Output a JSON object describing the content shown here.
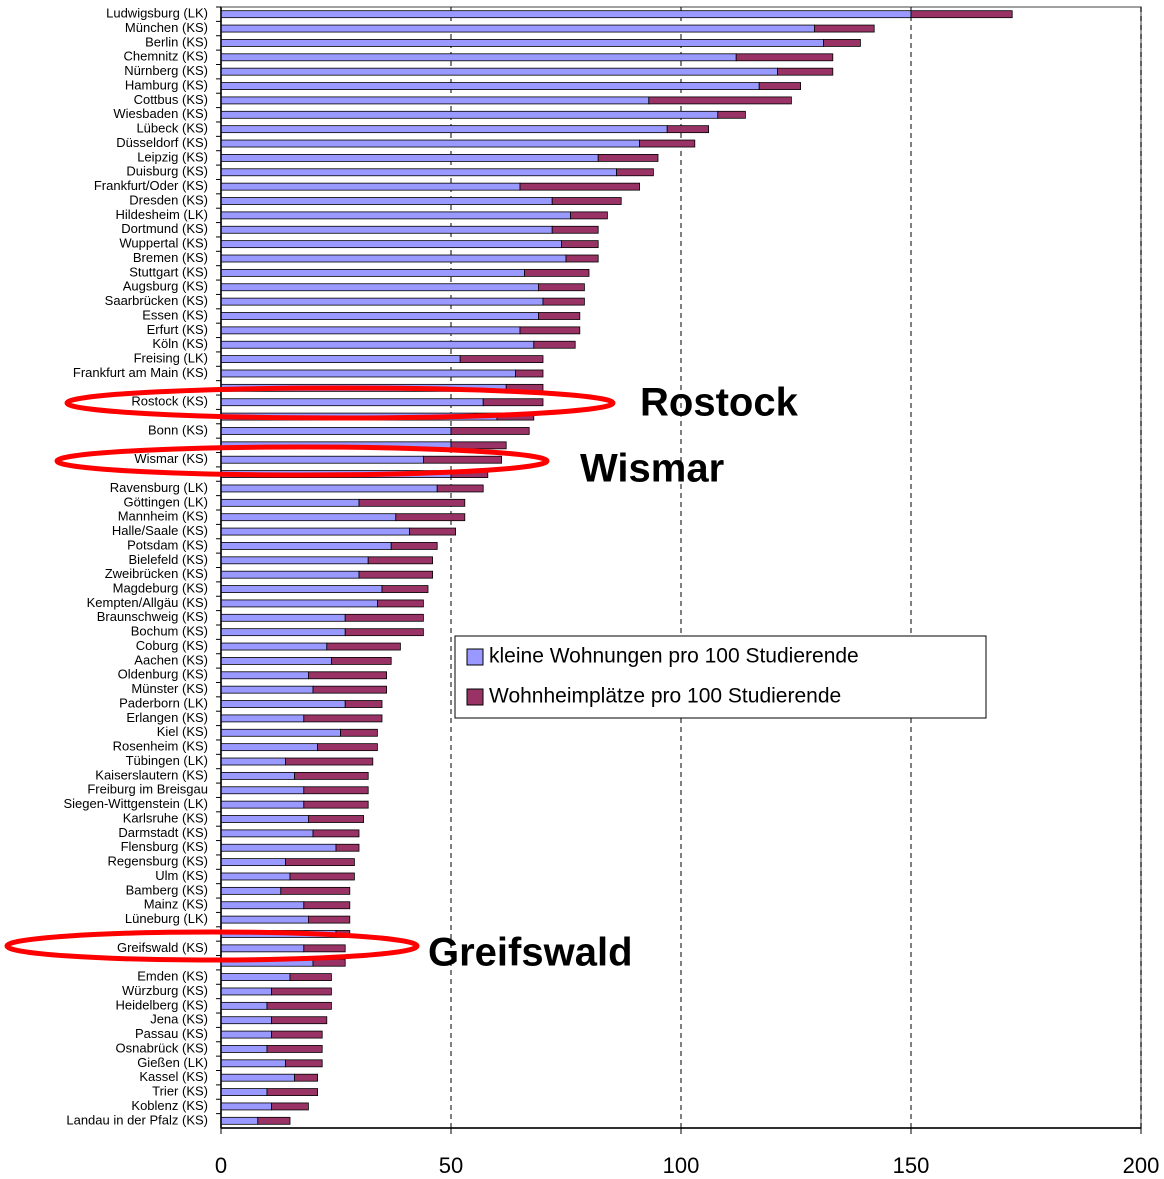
{
  "chart_data": {
    "type": "stacked-barh",
    "categories": [
      "Ludwigsburg (LK)",
      "München (KS)",
      "Berlin (KS)",
      "Chemnitz (KS)",
      "Nürnberg (KS)",
      "Hamburg (KS)",
      "Cottbus (KS)",
      "Wiesbaden (KS)",
      "Lübeck (KS)",
      "Düsseldorf (KS)",
      "Leipzig (KS)",
      "Duisburg (KS)",
      "Frankfurt/Oder (KS)",
      "Dresden (KS)",
      "Hildesheim (LK)",
      "Dortmund (KS)",
      "Wuppertal (KS)",
      "Bremen (KS)",
      "Stuttgart (KS)",
      "Augsburg (KS)",
      "Saarbrücken (KS)",
      "Essen (KS)",
      "Erfurt (KS)",
      "Köln (KS)",
      "Freising (LK)",
      "Frankfurt am Main (KS)",
      null,
      "Rostock (KS)",
      null,
      "Bonn (KS)",
      null,
      "Wismar (KS)",
      null,
      "Ravensburg (LK)",
      "Göttingen (LK)",
      "Mannheim (KS)",
      "Halle/Saale (KS)",
      "Potsdam (KS)",
      "Bielefeld (KS)",
      "Zweibrücken (KS)",
      "Magdeburg (KS)",
      "Kempten/Allgäu (KS)",
      "Braunschweig (KS)",
      "Bochum (KS)",
      "Coburg (KS)",
      "Aachen (KS)",
      "Oldenburg (KS)",
      "Münster (KS)",
      "Paderborn (LK)",
      "Erlangen (KS)",
      "Kiel (KS)",
      "Rosenheim (KS)",
      "Tübingen (LK)",
      "Kaiserslautern (KS)",
      "Freiburg im Breisgau",
      "Siegen-Wittgenstein (LK)",
      "Karlsruhe (KS)",
      "Darmstadt (KS)",
      "Flensburg (KS)",
      "Regensburg (KS)",
      "Ulm (KS)",
      "Bamberg (KS)",
      "Mainz (KS)",
      "Lüneburg (LK)",
      null,
      "Greifswald (KS)",
      null,
      "Emden (KS)",
      "Würzburg (KS)",
      "Heidelberg (KS)",
      "Jena (KS)",
      "Passau (KS)",
      "Osnabrück (KS)",
      "Gießen (LK)",
      "Kassel (KS)",
      "Trier (KS)",
      "Koblenz (KS)",
      "Landau in der Pfalz (KS)"
    ],
    "series": [
      {
        "name": "kleine Wohnungen pro 100 Studierende",
        "color": "#9999ff",
        "values": [
          150,
          129,
          131,
          112,
          121,
          117,
          93,
          108,
          97,
          91,
          82,
          86,
          65,
          72,
          76,
          72,
          74,
          75,
          66,
          69,
          70,
          69,
          65,
          68,
          52,
          64,
          62,
          57,
          60,
          50,
          50,
          44,
          50,
          47,
          30,
          38,
          41,
          37,
          32,
          30,
          35,
          34,
          27,
          27,
          23,
          24,
          19,
          20,
          27,
          18,
          26,
          21,
          14,
          16,
          18,
          18,
          19,
          20,
          25,
          14,
          15,
          13,
          18,
          19,
          25,
          18,
          20,
          15,
          11,
          10,
          11,
          11,
          10,
          14,
          16,
          10,
          11,
          8
        ]
      },
      {
        "name": "Wohnheimplätze pro 100 Studierende",
        "color": "#993366",
        "values": [
          22,
          13,
          8,
          21,
          12,
          9,
          31,
          6,
          9,
          12,
          13,
          8,
          26,
          15,
          8,
          10,
          8,
          7,
          14,
          10,
          9,
          9,
          13,
          9,
          18,
          6,
          8,
          13,
          8,
          17,
          12,
          17,
          8,
          10,
          23,
          15,
          10,
          10,
          14,
          16,
          10,
          10,
          17,
          17,
          16,
          13,
          17,
          16,
          8,
          17,
          8,
          13,
          19,
          16,
          14,
          14,
          12,
          10,
          5,
          15,
          14,
          15,
          10,
          9,
          3,
          9,
          7,
          9,
          13,
          14,
          12,
          11,
          12,
          8,
          5,
          11,
          8,
          7
        ]
      }
    ],
    "xlim": [
      0,
      200
    ],
    "xticks": [
      0,
      50,
      100,
      150,
      200
    ],
    "grid": true,
    "legend": "right",
    "annotations": [
      "Rostock",
      "Wismar",
      "Greifswald"
    ]
  }
}
